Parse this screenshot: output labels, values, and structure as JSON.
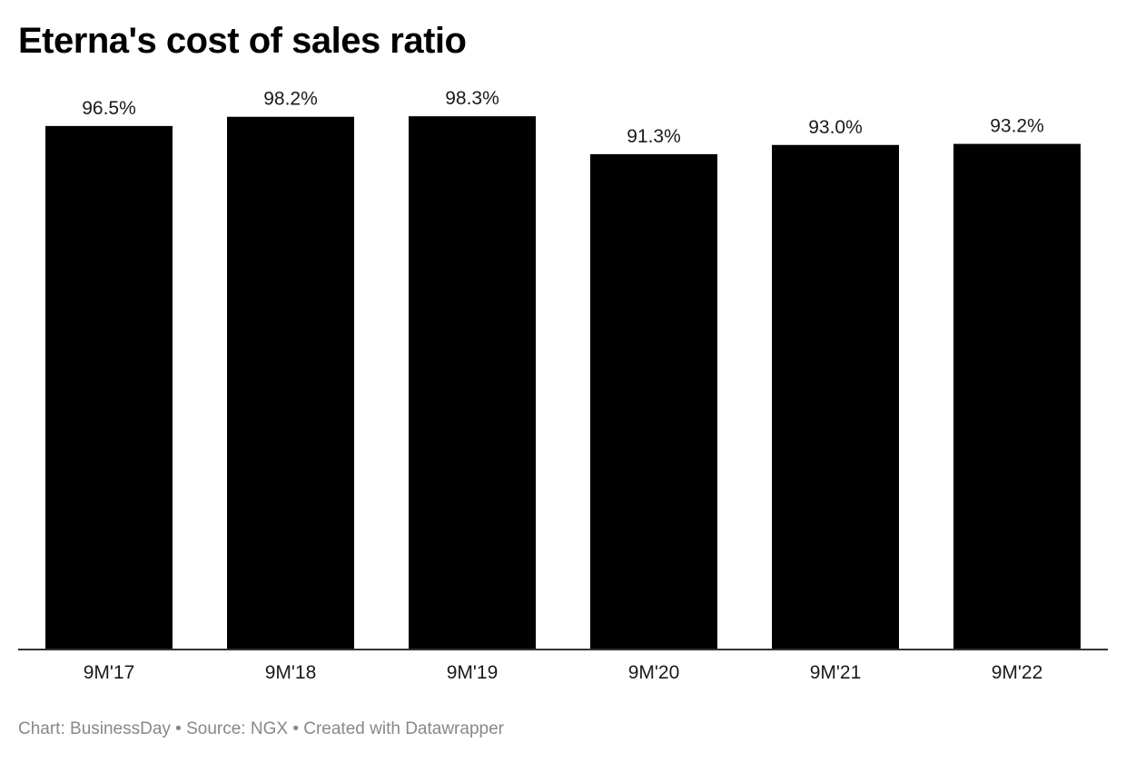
{
  "chart_data": {
    "type": "bar",
    "title": "Eterna's cost of sales ratio",
    "categories": [
      "9M'17",
      "9M'18",
      "9M'19",
      "9M'20",
      "9M'21",
      "9M'22"
    ],
    "values": [
      96.5,
      98.2,
      98.3,
      91.3,
      93.0,
      93.2
    ],
    "value_labels": [
      "96.5%",
      "98.2%",
      "98.3%",
      "91.3%",
      "93.0%",
      "93.2%"
    ],
    "xlabel": "",
    "ylabel": "",
    "ylim": [
      0,
      100
    ],
    "grid": false,
    "legend": "none",
    "bar_color": "#000000",
    "baseline_color": "#333333"
  },
  "footer": {
    "text": "Chart: BusinessDay • Source: NGX • Created with Datawrapper"
  }
}
